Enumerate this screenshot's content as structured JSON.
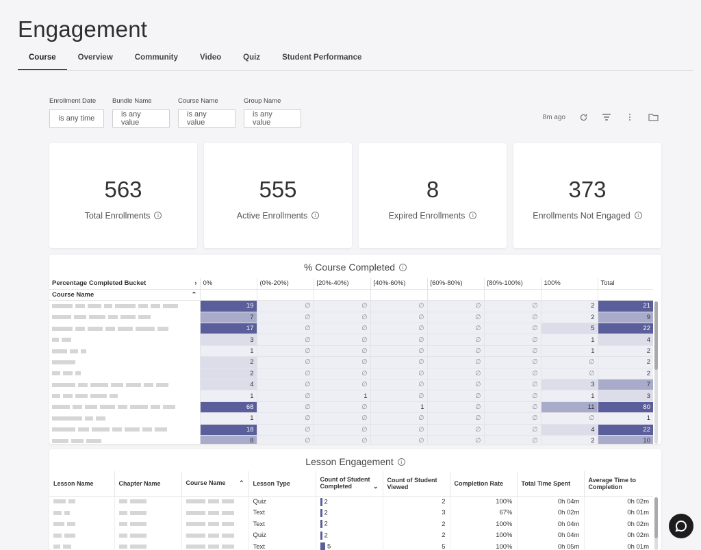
{
  "page": {
    "title": "Engagement"
  },
  "tabs": [
    {
      "label": "Course"
    },
    {
      "label": "Overview"
    },
    {
      "label": "Community"
    },
    {
      "label": "Video"
    },
    {
      "label": "Quiz"
    },
    {
      "label": "Student Performance"
    }
  ],
  "filters": [
    {
      "label": "Enrollment Date",
      "value": "is any time"
    },
    {
      "label": "Bundle Name",
      "value": "is any value"
    },
    {
      "label": "Course Name",
      "value": "is any value"
    },
    {
      "label": "Group Name",
      "value": "is any value"
    }
  ],
  "toolbar": {
    "updated": "8m ago"
  },
  "kpis": [
    {
      "value": "563",
      "label": "Total Enrollments"
    },
    {
      "value": "555",
      "label": "Active Enrollments"
    },
    {
      "value": "8",
      "label": "Expired Enrollments"
    },
    {
      "value": "373",
      "label": "Enrollments Not Engaged"
    }
  ],
  "completed": {
    "title": "% Course Completed",
    "pivot_label": "Percentage Completed Bucket",
    "row_label": "Course Name",
    "columns": [
      "0%",
      "(0%-20%)",
      "[20%-40%)",
      "[40%-60%)",
      "[60%-80%)",
      "[80%-100%)",
      "100%",
      "Total"
    ],
    "null_symbol": "∅",
    "rows": [
      [
        "19",
        "∅",
        "∅",
        "∅",
        "∅",
        "∅",
        "2",
        "21"
      ],
      [
        "7",
        "∅",
        "∅",
        "∅",
        "∅",
        "∅",
        "2",
        "9"
      ],
      [
        "17",
        "∅",
        "∅",
        "∅",
        "∅",
        "∅",
        "5",
        "22"
      ],
      [
        "3",
        "∅",
        "∅",
        "∅",
        "∅",
        "∅",
        "1",
        "4"
      ],
      [
        "1",
        "∅",
        "∅",
        "∅",
        "∅",
        "∅",
        "1",
        "2"
      ],
      [
        "2",
        "∅",
        "∅",
        "∅",
        "∅",
        "∅",
        "∅",
        "2"
      ],
      [
        "2",
        "∅",
        "∅",
        "∅",
        "∅",
        "∅",
        "∅",
        "2"
      ],
      [
        "4",
        "∅",
        "∅",
        "∅",
        "∅",
        "∅",
        "3",
        "7"
      ],
      [
        "1",
        "∅",
        "1",
        "∅",
        "∅",
        "∅",
        "1",
        "3"
      ],
      [
        "68",
        "∅",
        "∅",
        "1",
        "∅",
        "∅",
        "11",
        "80"
      ],
      [
        "1",
        "∅",
        "∅",
        "∅",
        "∅",
        "∅",
        "∅",
        "1"
      ],
      [
        "18",
        "∅",
        "∅",
        "∅",
        "∅",
        "∅",
        "4",
        "22"
      ],
      [
        "8",
        "∅",
        "∅",
        "∅",
        "∅",
        "∅",
        "2",
        "10"
      ]
    ]
  },
  "lesson": {
    "title": "Lesson Engagement",
    "columns": [
      "Lesson Name",
      "Chapter Name",
      "Course Name",
      "Lesson Type",
      "Count of Student Completed",
      "Count of Student Viewed",
      "Completion Rate",
      "Total Time Spent",
      "Average Time to Completion"
    ],
    "rows": [
      {
        "type": "Quiz",
        "completed": "2",
        "viewed": "2",
        "rate": "100%",
        "total": "0h 04m",
        "avg": "0h 02m"
      },
      {
        "type": "Text",
        "completed": "2",
        "viewed": "3",
        "rate": "67%",
        "total": "0h 02m",
        "avg": "0h 01m"
      },
      {
        "type": "Text",
        "completed": "2",
        "viewed": "2",
        "rate": "100%",
        "total": "0h 04m",
        "avg": "0h 02m"
      },
      {
        "type": "Quiz",
        "completed": "2",
        "viewed": "2",
        "rate": "100%",
        "total": "0h 04m",
        "avg": "0h 02m"
      },
      {
        "type": "Text",
        "completed": "5",
        "viewed": "5",
        "rate": "100%",
        "total": "0h 05m",
        "avg": "0h 01m"
      }
    ]
  },
  "colors": {
    "dark": "#5a5e9a",
    "mid": "#a9abcb",
    "light": "#dcdde9",
    "pale": "#eeeef5"
  }
}
